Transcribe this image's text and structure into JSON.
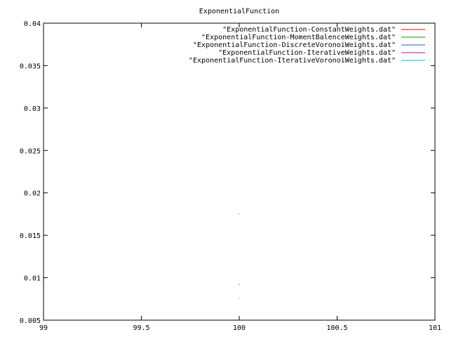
{
  "chart_data": {
    "type": "scatter",
    "title": "ExponentialFunction",
    "xlabel": "",
    "ylabel": "",
    "xlim": [
      99,
      101
    ],
    "ylim": [
      0.005,
      0.04
    ],
    "x_ticks": [
      "99",
      "99.5",
      "100",
      "100.5",
      "101"
    ],
    "x_tick_values": [
      99,
      99.5,
      100,
      100.5,
      101
    ],
    "y_ticks": [
      "0.04",
      "0.035",
      "0.03",
      "0.025",
      "0.02",
      "0.015",
      "0.01",
      "0.005"
    ],
    "y_tick_values": [
      0.04,
      0.035,
      0.03,
      0.025,
      0.02,
      0.015,
      0.01,
      0.005
    ],
    "grid": false,
    "legend_position": "top-right",
    "series": [
      {
        "name": "\"ExponentialFunction-ConstantWeights.dat\"",
        "color": "#ff0000",
        "x": [
          100
        ],
        "y": [
          0.0175
        ]
      },
      {
        "name": "\"ExponentialFunction-MomentBalenceWeights.dat\"",
        "color": "#00a000",
        "x": [
          100
        ],
        "y": [
          0.0175
        ]
      },
      {
        "name": "\"ExponentialFunction-DiscreteVoronoiWeights.dat\"",
        "color": "#2060c0",
        "x": [
          100
        ],
        "y": [
          0.0092
        ]
      },
      {
        "name": "\"ExponentialFunction-IterativeWeights.dat\"",
        "color": "#c000c0",
        "x": [
          100
        ],
        "y": [
          0.0092
        ]
      },
      {
        "name": "\"ExponentialFunction-IterativeVoronoiWeights.dat\"",
        "color": "#00c0c0",
        "x": [
          100
        ],
        "y": [
          0.0076
        ]
      }
    ]
  }
}
